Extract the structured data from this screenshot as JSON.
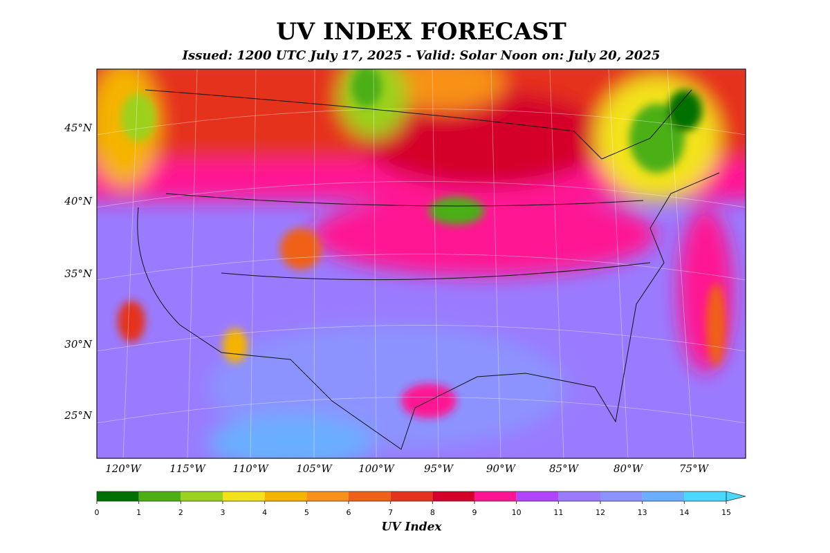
{
  "title": "UV INDEX FORECAST",
  "subtitle": "Issued: 1200 UTC July 17, 2025 - Valid: Solar Noon on: July 20, 2025",
  "lat_labels": [
    "45°N",
    "40°N",
    "35°N",
    "30°N",
    "25°N"
  ],
  "lon_labels": [
    "120°W",
    "115°W",
    "110°W",
    "105°W",
    "100°W",
    "95°W",
    "90°W",
    "85°W",
    "80°W",
    "75°W"
  ],
  "colorbar": {
    "label": "UV Index",
    "ticks": [
      0,
      1,
      2,
      3,
      4,
      5,
      6,
      7,
      8,
      9,
      10,
      11,
      12,
      13,
      14,
      15
    ],
    "colors": [
      "#007000",
      "#4caf14",
      "#9bd11f",
      "#f3e21a",
      "#f5b400",
      "#f89117",
      "#f06018",
      "#e5321d",
      "#d4002a",
      "#ff1493",
      "#b144ff",
      "#9a7bff",
      "#8c93ff",
      "#6aaeff",
      "#4ad8ff"
    ],
    "extend": "max"
  }
}
